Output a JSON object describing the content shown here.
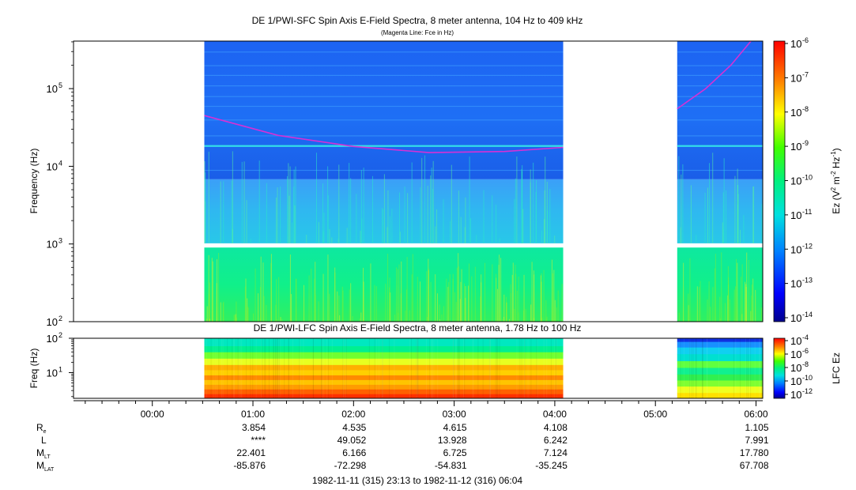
{
  "chart_data": [
    {
      "type": "heatmap",
      "title": "DE 1/PWI-SFC  Spin Axis E-Field Spectra, 8 meter antenna, 104 Hz to 409 kHz",
      "subtitle": "(Magenta Line: Fce in Hz)",
      "ylabel": "Frequency (Hz)",
      "y_scale": "log",
      "ylim": [
        100,
        409000
      ],
      "y_ticks": [
        {
          "value": 100,
          "base": "10",
          "exp": "2"
        },
        {
          "value": 1000,
          "base": "10",
          "exp": "3"
        },
        {
          "value": 10000,
          "base": "10",
          "exp": "4"
        },
        {
          "value": 100000,
          "base": "10",
          "exp": "5"
        }
      ],
      "data_intervals": [
        {
          "start": "00:31",
          "end": "04:05"
        },
        {
          "start": "05:13",
          "end": "06:04"
        }
      ],
      "fce_line": {
        "color": "#d531d5",
        "points": [
          {
            "t": "00:31",
            "hz": 45000
          },
          {
            "t": "01:15",
            "hz": 25000
          },
          {
            "t": "02:00",
            "hz": 18000
          },
          {
            "t": "02:45",
            "hz": 15000
          },
          {
            "t": "03:30",
            "hz": 15500
          },
          {
            "t": "04:05",
            "hz": 17500
          },
          {
            "t": "05:13",
            "hz": 55000
          },
          {
            "t": "05:30",
            "hz": 100000
          },
          {
            "t": "05:45",
            "hz": 200000
          },
          {
            "t": "05:57",
            "hz": 409000
          }
        ]
      },
      "colorbar": {
        "label": "Ez (V",
        "label_sup1": "2",
        "label_mid": " m",
        "label_sup2": "-2",
        "label_mid2": " Hz",
        "label_sup3": "-1",
        "label_end": ")",
        "ticks": [
          {
            "base": "10",
            "exp": "-6"
          },
          {
            "base": "10",
            "exp": "-7"
          },
          {
            "base": "10",
            "exp": "-8"
          },
          {
            "base": "10",
            "exp": "-9"
          },
          {
            "base": "10",
            "exp": "-10"
          },
          {
            "base": "10",
            "exp": "-11"
          },
          {
            "base": "10",
            "exp": "-12"
          },
          {
            "base": "10",
            "exp": "-13"
          },
          {
            "base": "10",
            "exp": "-14"
          }
        ]
      }
    },
    {
      "type": "heatmap",
      "title": "DE 1/PWI-LFC  Spin Axis E-Field Spectra, 8 meter antenna, 1.78 Hz to 100 Hz",
      "ylabel": "Freq (Hz)",
      "y_scale": "log",
      "ylim": [
        1.78,
        100
      ],
      "y_ticks": [
        {
          "value": 10,
          "base": "10",
          "exp": "1"
        },
        {
          "value": 100,
          "base": "10",
          "exp": "2"
        }
      ],
      "data_intervals": [
        {
          "start": "00:31",
          "end": "04:05"
        },
        {
          "start": "05:13",
          "end": "06:04"
        }
      ],
      "colorbar": {
        "label": "LFC Ez",
        "ticks": [
          {
            "base": "10",
            "exp": "-4"
          },
          {
            "base": "10",
            "exp": "-6"
          },
          {
            "base": "10",
            "exp": "-8"
          },
          {
            "base": "10",
            "exp": "-10"
          },
          {
            "base": "10",
            "exp": "-12"
          }
        ]
      }
    }
  ],
  "time_axis": {
    "range": [
      "23:13",
      "06:04"
    ],
    "major_ticks": [
      "00:00",
      "01:00",
      "02:00",
      "03:00",
      "04:00",
      "05:00",
      "06:00"
    ],
    "footer": "1982-11-11 (315) 23:13 to 1982-11-12 (316) 06:04"
  },
  "ephemeris": {
    "rows": [
      {
        "label": "R",
        "sub": "e",
        "values": [
          "3.854",
          "4.535",
          "4.615",
          "4.108",
          "1.105"
        ]
      },
      {
        "label": "L",
        "sub": "",
        "values": [
          "****",
          "49.052",
          "13.928",
          "6.242",
          "7.991"
        ]
      },
      {
        "label": "M",
        "sub": "LT",
        "values": [
          "22.401",
          "6.166",
          "6.725",
          "7.124",
          "17.780"
        ]
      },
      {
        "label": "M",
        "sub": "LAT",
        "values": [
          "-85.876",
          "-72.298",
          "-54.831",
          "-35.245",
          "67.708"
        ]
      }
    ],
    "value_times": [
      "01:00",
      "02:00",
      "03:00",
      "04:00",
      "06:00"
    ]
  }
}
